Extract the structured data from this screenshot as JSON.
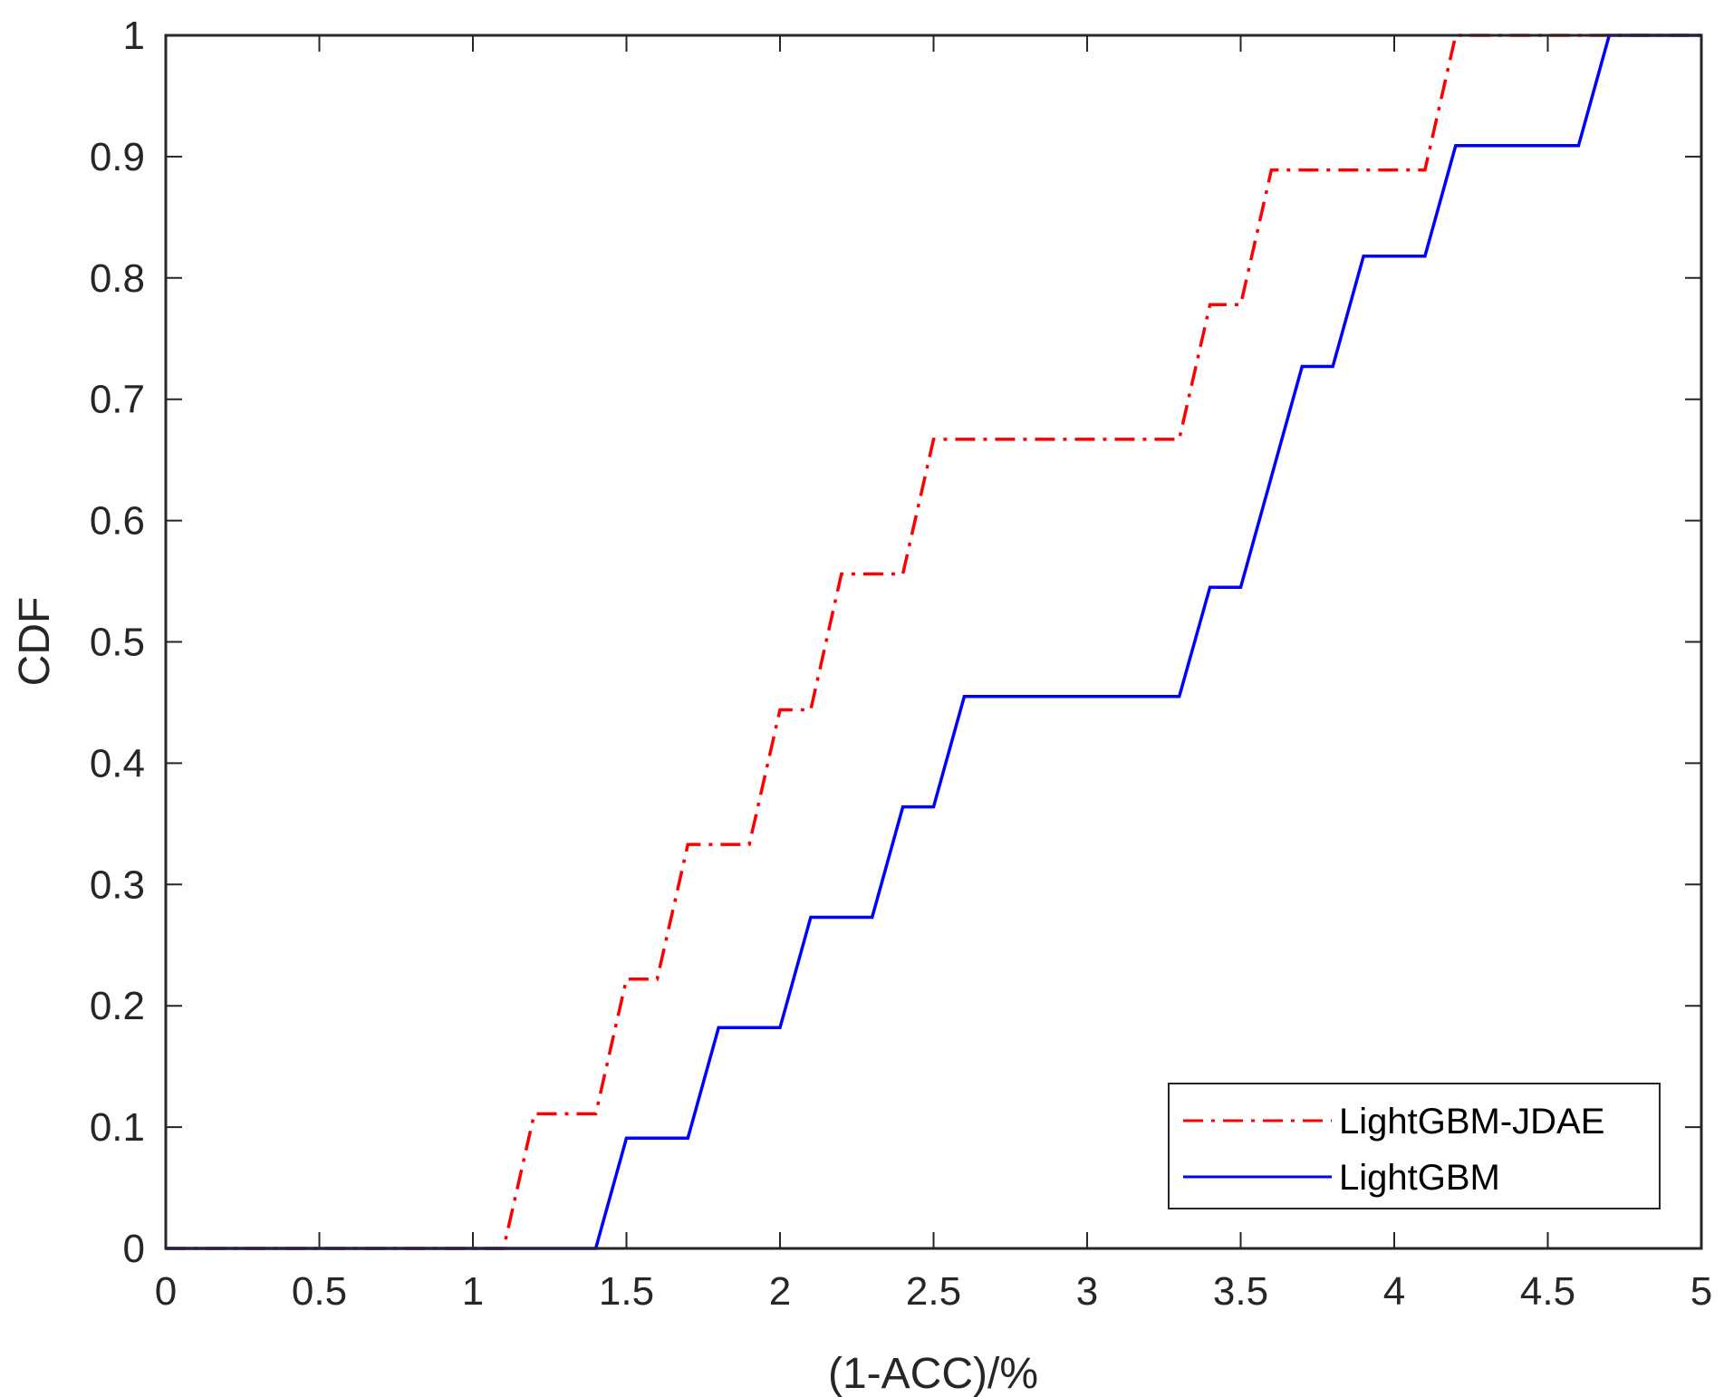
{
  "chart_data": {
    "type": "line",
    "title": "",
    "xlabel": "(1-ACC)/%",
    "ylabel": "CDF",
    "xlim": [
      0,
      5
    ],
    "ylim": [
      0,
      1
    ],
    "xticks": [
      0,
      0.5,
      1,
      1.5,
      2,
      2.5,
      3,
      3.5,
      4,
      4.5,
      5
    ],
    "xtick_labels": [
      "0",
      "0.5",
      "1",
      "1.5",
      "2",
      "2.5",
      "3",
      "3.5",
      "4",
      "4.5",
      "5"
    ],
    "yticks": [
      0,
      0.1,
      0.2,
      0.3,
      0.4,
      0.5,
      0.6,
      0.7,
      0.8,
      0.9,
      1
    ],
    "ytick_labels": [
      "0",
      "0.1",
      "0.2",
      "0.3",
      "0.4",
      "0.5",
      "0.6",
      "0.7",
      "0.8",
      "0.9",
      "1"
    ],
    "grid": false,
    "legend_position": "bottom-right",
    "series": [
      {
        "name": "LightGBM-JDAE",
        "color": "#ff0000",
        "style": "dashdot",
        "x": [
          0,
          1.1,
          1.2,
          1.4,
          1.5,
          1.6,
          1.7,
          1.9,
          2.0,
          2.1,
          2.2,
          2.4,
          2.5,
          3.3,
          3.4,
          3.5,
          3.6,
          4.1,
          4.2,
          5.0
        ],
        "y": [
          0,
          0,
          0.111,
          0.111,
          0.222,
          0.222,
          0.333,
          0.333,
          0.444,
          0.444,
          0.556,
          0.556,
          0.667,
          0.667,
          0.778,
          0.778,
          0.889,
          0.889,
          1.0,
          1.0
        ]
      },
      {
        "name": "LightGBM",
        "color": "#0000ff",
        "style": "solid",
        "x": [
          0,
          1.4,
          1.5,
          1.7,
          1.8,
          2.0,
          2.1,
          2.3,
          2.4,
          2.5,
          2.6,
          3.3,
          3.4,
          3.5,
          3.7,
          3.8,
          3.9,
          4.1,
          4.2,
          4.6,
          4.7,
          5.0
        ],
        "y": [
          0,
          0,
          0.091,
          0.091,
          0.182,
          0.182,
          0.273,
          0.273,
          0.364,
          0.364,
          0.455,
          0.455,
          0.545,
          0.545,
          0.727,
          0.727,
          0.818,
          0.818,
          0.909,
          0.909,
          1.0,
          1.0
        ]
      }
    ]
  }
}
